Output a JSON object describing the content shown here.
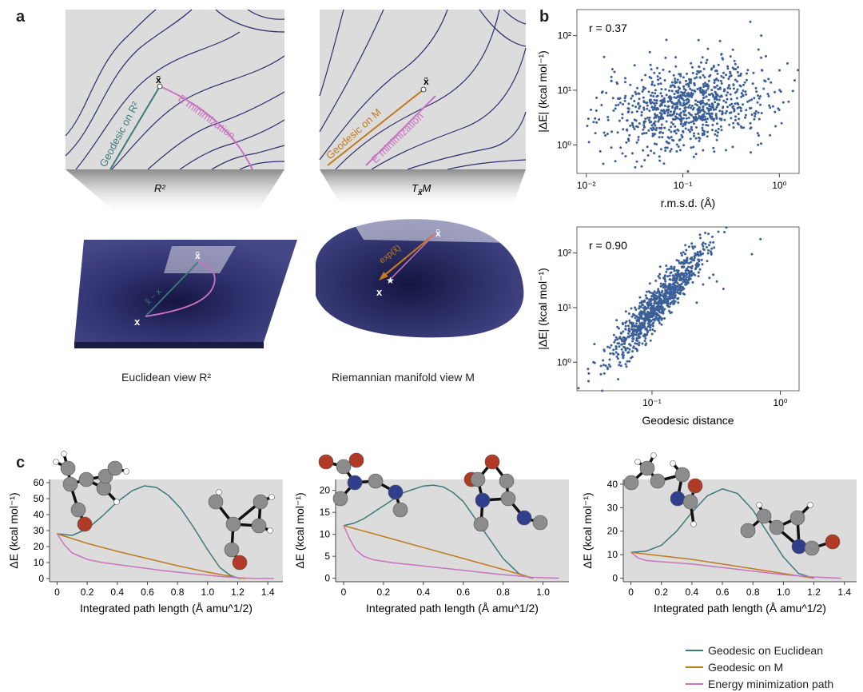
{
  "labels": {
    "panel_a": "a",
    "panel_b": "b",
    "panel_c": "c",
    "euclid_geodesic": "Geodesic on R²",
    "euclid_emin": "E minimization",
    "euclid_plane": "R²",
    "euclid_xt": "x̃",
    "euclid_x": "x",
    "euclid_vec": "x̃ − x",
    "rie_geodesic": "Geodesic on M",
    "rie_emin": "E minimization",
    "rie_plane": "T",
    "rie_plane_sub": "x̃",
    "rie_plane_M": "M",
    "rie_xt": "x̃",
    "rie_x": "x",
    "rie_exp": "exp(x̃)",
    "caption_euclid": "Euclidean view  R²",
    "caption_rie": "Riemannian manifold view  M"
  },
  "colors": {
    "euclidean": "#3d7a7a",
    "manifold": "#c07a1e",
    "energy": "#c874c0",
    "scatter": "#3b5f98",
    "contour": "#2e2f6e",
    "surface": "#2d2f68",
    "carbon": "#8c8c8c",
    "oxygen": "#b03a25",
    "nitrogen": "#2f3f8e"
  },
  "legend": [
    {
      "label": "Geodesic on Euclidean",
      "color": "#3d7a7a"
    },
    {
      "label": "Geodesic on  M",
      "color": "#c07a1e"
    },
    {
      "label": "Energy minimization path",
      "color": "#c874c0"
    }
  ],
  "chart_data": [
    {
      "type": "scatter",
      "panel": "b-top",
      "annotation": "r = 0.37",
      "xlabel": "r.m.s.d. (Å)",
      "ylabel": "|ΔE| (kcal mol⁻¹)",
      "xscale": "log",
      "yscale": "log",
      "xlim": [
        0.008,
        1.6
      ],
      "ylim": [
        0.3,
        300
      ],
      "xticks": [
        {
          "v": 0.01,
          "label": "10⁻²"
        },
        {
          "v": 0.1,
          "label": "10⁻¹"
        },
        {
          "v": 1,
          "label": "10⁰"
        }
      ],
      "yticks": [
        {
          "v": 1,
          "label": "10⁰"
        },
        {
          "v": 10,
          "label": "10¹"
        },
        {
          "v": 100,
          "label": "10²"
        }
      ],
      "points": [
        [
          0.5,
          180
        ],
        [
          0.65,
          100
        ],
        [
          0.015,
          0.45
        ],
        [
          0.02,
          0.5
        ],
        [
          0.03,
          0.7
        ],
        [
          0.9,
          4
        ],
        [
          1.1,
          6
        ],
        [
          0.04,
          2.1
        ],
        [
          0.06,
          3.5
        ],
        [
          0.08,
          1.2
        ],
        [
          0.12,
          14
        ],
        [
          0.2,
          25
        ],
        [
          0.3,
          12
        ],
        [
          0.25,
          45
        ],
        [
          0.35,
          30
        ],
        [
          0.15,
          6
        ],
        [
          0.1,
          2.2
        ],
        [
          0.4,
          20
        ],
        [
          0.6,
          8
        ],
        [
          0.7,
          15
        ],
        [
          0.05,
          1.5
        ],
        [
          0.09,
          9
        ],
        [
          0.18,
          3
        ],
        [
          0.22,
          1.8
        ],
        [
          0.45,
          3.5
        ],
        [
          0.13,
          0.6
        ],
        [
          0.28,
          0.8
        ],
        [
          0.07,
          5
        ],
        [
          0.11,
          20
        ],
        [
          0.33,
          55
        ],
        [
          0.16,
          40
        ],
        [
          0.5,
          2
        ],
        [
          0.8,
          1.5
        ],
        [
          0.03,
          2.5
        ],
        [
          0.026,
          1.1
        ]
      ],
      "cloud": {
        "n": 900,
        "seed": 7,
        "xmu": -0.95,
        "xsd": 0.42,
        "ymu": 0.72,
        "ysd": 0.38
      }
    },
    {
      "type": "scatter",
      "panel": "b-bottom",
      "annotation": "r = 0.90",
      "xlabel": "Geodesic distance",
      "ylabel": "|ΔE| (kcal mol⁻¹)",
      "xscale": "log",
      "yscale": "log",
      "xlim": [
        0.026,
        1.4
      ],
      "ylim": [
        0.3,
        300
      ],
      "xticks": [
        {
          "v": 0.1,
          "label": "10⁻¹"
        },
        {
          "v": 1,
          "label": "10⁰"
        }
      ],
      "yticks": [
        {
          "v": 1,
          "label": "10⁰"
        },
        {
          "v": 10,
          "label": "10¹"
        },
        {
          "v": 100,
          "label": "10²"
        }
      ],
      "points": [
        [
          0.7,
          180
        ],
        [
          0.6,
          95
        ],
        [
          0.032,
          0.45
        ],
        [
          0.04,
          0.6
        ],
        [
          0.045,
          0.8
        ],
        [
          0.035,
          1.0
        ],
        [
          0.3,
          40
        ],
        [
          0.32,
          30
        ],
        [
          0.28,
          35
        ],
        [
          0.36,
          22
        ]
      ],
      "cloud": {
        "n": 900,
        "seed": 11,
        "xmu": -0.95,
        "xsd": 0.2,
        "slope": 2.6,
        "intercept": 3.55,
        "noise": 0.2
      }
    },
    {
      "type": "line",
      "panel": "c-1",
      "xlabel": "Integrated path length (Å amu^1/2)",
      "ylabel": "ΔE (kcal mol⁻¹)",
      "xlim": [
        -0.05,
        1.5
      ],
      "ylim": [
        -2,
        62
      ],
      "xticks": [
        0,
        0.2,
        0.4,
        0.6,
        0.8,
        1.0,
        1.2,
        1.4
      ],
      "yticks": [
        0,
        10,
        20,
        30,
        40,
        50,
        60
      ],
      "series": [
        {
          "name": "Geodesic on Euclidean",
          "color": "#3d7a7a",
          "x": [
            0,
            0.1,
            0.2,
            0.3,
            0.4,
            0.5,
            0.58,
            0.66,
            0.74,
            0.82,
            0.9,
            1.0,
            1.08,
            1.15,
            1.2,
            1.22
          ],
          "y": [
            28,
            27,
            31,
            39,
            48,
            55,
            58,
            57,
            52,
            44,
            33,
            18,
            7,
            2,
            0.3,
            0
          ]
        },
        {
          "name": "Geodesic on M",
          "color": "#c07a1e",
          "x": [
            0,
            0.2,
            0.4,
            0.6,
            0.8,
            1.0,
            1.2,
            1.25
          ],
          "y": [
            28,
            22,
            17,
            12.5,
            8,
            4,
            0.5,
            0
          ]
        },
        {
          "name": "Energy minimization path",
          "color": "#c874c0",
          "x": [
            0,
            0.05,
            0.1,
            0.2,
            0.3,
            0.5,
            0.7,
            0.9,
            1.1,
            1.2,
            1.3,
            1.44
          ],
          "y": [
            28,
            21,
            16,
            12,
            10,
            7.5,
            5,
            3,
            1.2,
            0.5,
            0.1,
            0
          ]
        }
      ]
    },
    {
      "type": "line",
      "panel": "c-2",
      "xlabel": "Integrated path length (Å amu^1/2)",
      "ylabel": "ΔE (kcal mol⁻¹)",
      "xlim": [
        -0.04,
        1.13
      ],
      "ylim": [
        -0.8,
        22.5
      ],
      "xticks": [
        0,
        0.2,
        0.4,
        0.6,
        0.8,
        1.0
      ],
      "yticks": [
        0,
        5,
        10,
        15,
        20
      ],
      "series": [
        {
          "name": "Geodesic on Euclidean",
          "color": "#3d7a7a",
          "x": [
            0,
            0.05,
            0.1,
            0.2,
            0.3,
            0.4,
            0.45,
            0.5,
            0.55,
            0.6,
            0.7,
            0.8,
            0.88,
            0.93,
            0.95
          ],
          "y": [
            12,
            12.5,
            13.5,
            16.5,
            19.5,
            21,
            21.2,
            20.8,
            19.5,
            17.5,
            11,
            4.5,
            1,
            0.2,
            0
          ]
        },
        {
          "name": "Geodesic on M",
          "color": "#c07a1e",
          "x": [
            0,
            0.2,
            0.4,
            0.6,
            0.8,
            0.95
          ],
          "y": [
            12,
            9.5,
            7,
            4.5,
            2,
            0
          ]
        },
        {
          "name": "Energy minimization path",
          "color": "#c874c0",
          "x": [
            0,
            0.03,
            0.06,
            0.1,
            0.15,
            0.25,
            0.4,
            0.6,
            0.8,
            0.95,
            1.08
          ],
          "y": [
            12,
            9,
            6.5,
            5,
            4.2,
            3.5,
            2.8,
            1.8,
            0.8,
            0.2,
            0
          ]
        }
      ]
    },
    {
      "type": "line",
      "panel": "c-3",
      "xlabel": "Integrated path length (Å amu^1/2)",
      "ylabel": "ΔE (kcal mol⁻¹)",
      "xlim": [
        -0.05,
        1.48
      ],
      "ylim": [
        -1.5,
        42
      ],
      "xticks": [
        0,
        0.2,
        0.4,
        0.6,
        0.8,
        1.0,
        1.2,
        1.4
      ],
      "yticks": [
        0,
        10,
        20,
        30,
        40
      ],
      "series": [
        {
          "name": "Geodesic on Euclidean",
          "color": "#3d7a7a",
          "x": [
            0,
            0.1,
            0.2,
            0.3,
            0.4,
            0.5,
            0.6,
            0.7,
            0.8,
            0.9,
            1.0,
            1.1,
            1.2
          ],
          "y": [
            11,
            11.5,
            14,
            20,
            28,
            35,
            38,
            36,
            29,
            19,
            9,
            2,
            0
          ]
        },
        {
          "name": "Geodesic on M",
          "color": "#c07a1e",
          "x": [
            0,
            0.2,
            0.4,
            0.6,
            0.8,
            1.0,
            1.2
          ],
          "y": [
            11,
            9.5,
            8,
            6,
            4,
            2,
            0
          ]
        },
        {
          "name": "Energy minimization path",
          "color": "#c874c0",
          "x": [
            0,
            0.05,
            0.1,
            0.2,
            0.4,
            0.6,
            0.8,
            1.0,
            1.2,
            1.38
          ],
          "y": [
            11,
            8.5,
            7.5,
            7,
            6,
            4.5,
            3,
            1.5,
            0.5,
            0
          ]
        }
      ]
    }
  ]
}
